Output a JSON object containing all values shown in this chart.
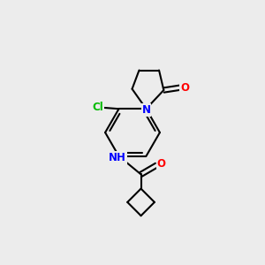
{
  "bg_color": "#ececec",
  "bond_color": "#000000",
  "atom_colors": {
    "N": "#0000ff",
    "O": "#ff0000",
    "Cl": "#00bb00",
    "C": "#000000"
  },
  "bond_width": 1.5,
  "font_size": 8.5
}
